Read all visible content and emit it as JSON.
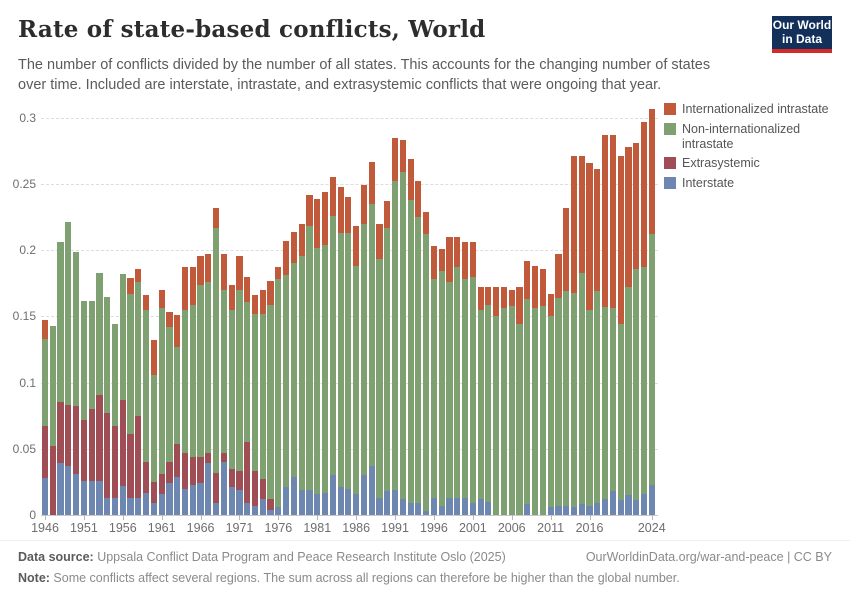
{
  "header": {
    "title": "Rate of state-based conflicts, World",
    "subtitle": "The number of conflicts divided by the number of all states. This accounts for the changing number of states over time. Included are interstate, intrastate, and extrasystemic conflicts that were ongoing that year."
  },
  "logo": {
    "line1": "Our World",
    "line2": "in Data",
    "bg_color": "#12305a",
    "stripe_color": "#d42b27"
  },
  "legend": [
    {
      "label": "Internationalized intrastate",
      "color": "#c05a3b"
    },
    {
      "label": "Non-internationalized intrastate",
      "color": "#7fa071"
    },
    {
      "label": "Extrasystemic",
      "color": "#9e4e54"
    },
    {
      "label": "Interstate",
      "color": "#6e87b1"
    }
  ],
  "chart_data": {
    "type": "bar",
    "stacked": true,
    "title": "Rate of state-based conflicts, World",
    "xlabel": "",
    "ylabel": "",
    "ylim": [
      0,
      0.31
    ],
    "grid": "horizontal-dashed",
    "legend_position": "top-right",
    "yticks": [
      {
        "value": 0,
        "label": "0"
      },
      {
        "value": 0.05,
        "label": "0.05"
      },
      {
        "value": 0.1,
        "label": "0.1"
      },
      {
        "value": 0.15,
        "label": "0.15"
      },
      {
        "value": 0.2,
        "label": "0.2"
      },
      {
        "value": 0.25,
        "label": "0.25"
      },
      {
        "value": 0.3,
        "label": "0.3"
      }
    ],
    "xtick_years": [
      1946,
      1951,
      1956,
      1961,
      1966,
      1971,
      1976,
      1981,
      1986,
      1991,
      1996,
      2001,
      2006,
      2011,
      2016,
      2024
    ],
    "years": [
      1946,
      1947,
      1948,
      1949,
      1950,
      1951,
      1952,
      1953,
      1954,
      1955,
      1956,
      1957,
      1958,
      1959,
      1960,
      1961,
      1962,
      1963,
      1964,
      1965,
      1966,
      1967,
      1968,
      1969,
      1970,
      1971,
      1972,
      1973,
      1974,
      1975,
      1976,
      1977,
      1978,
      1979,
      1980,
      1981,
      1982,
      1983,
      1984,
      1985,
      1986,
      1987,
      1988,
      1989,
      1990,
      1991,
      1992,
      1993,
      1994,
      1995,
      1996,
      1997,
      1998,
      1999,
      2000,
      2001,
      2002,
      2003,
      2004,
      2005,
      2006,
      2007,
      2008,
      2009,
      2010,
      2011,
      2012,
      2013,
      2014,
      2015,
      2016,
      2017,
      2018,
      2019,
      2020,
      2021,
      2022,
      2023,
      2024
    ],
    "series": [
      {
        "name": "Interstate",
        "color": "#6e87b1",
        "values": [
          0.028,
          0,
          0.039,
          0.037,
          0.031,
          0.026,
          0.026,
          0.026,
          0.013,
          0.013,
          0.022,
          0.013,
          0.013,
          0.017,
          0.009,
          0.016,
          0.024,
          0.029,
          0.02,
          0.023,
          0.024,
          0.039,
          0.009,
          0.04,
          0.021,
          0.019,
          0.009,
          0.007,
          0.012,
          0.004,
          0.006,
          0.021,
          0.029,
          0.019,
          0.019,
          0.016,
          0.017,
          0.03,
          0.021,
          0.02,
          0.016,
          0.03,
          0.037,
          0.013,
          0.018,
          0.019,
          0.012,
          0.009,
          0.009,
          0.003,
          0.013,
          0.007,
          0.013,
          0.013,
          0.013,
          0.009,
          0.012,
          0.01,
          0,
          0,
          0,
          0,
          0.008,
          0,
          0,
          0.006,
          0.007,
          0.007,
          0.006,
          0.008,
          0.007,
          0.009,
          0.012,
          0.018,
          0.011,
          0.015,
          0.011,
          0.016,
          0.023
        ]
      },
      {
        "name": "Extrasystemic",
        "color": "#9e4e54",
        "values": [
          0.039,
          0.052,
          0.046,
          0.046,
          0.051,
          0.046,
          0.054,
          0.065,
          0.064,
          0.054,
          0.065,
          0.048,
          0.062,
          0.023,
          0.016,
          0.015,
          0.016,
          0.025,
          0.027,
          0.021,
          0.02,
          0.008,
          0.023,
          0.007,
          0.014,
          0.014,
          0.046,
          0.026,
          0.015,
          0.008,
          0,
          0,
          0,
          0,
          0,
          0,
          0,
          0,
          0,
          0,
          0,
          0,
          0,
          0,
          0,
          0,
          0,
          0,
          0,
          0,
          0,
          0,
          0,
          0,
          0,
          0,
          0,
          0,
          0,
          0,
          0,
          0,
          0,
          0,
          0,
          0,
          0,
          0,
          0,
          0,
          0,
          0,
          0,
          0,
          0,
          0,
          0,
          0,
          0
        ]
      },
      {
        "name": "Non-internationalized intrastate",
        "color": "#7fa071",
        "values": [
          0.066,
          0.091,
          0.121,
          0.138,
          0.117,
          0.09,
          0.082,
          0.092,
          0.088,
          0.077,
          0.095,
          0.106,
          0.101,
          0.115,
          0.081,
          0.125,
          0.102,
          0.073,
          0.108,
          0.115,
          0.13,
          0.129,
          0.185,
          0.123,
          0.12,
          0.137,
          0.106,
          0.119,
          0.125,
          0.147,
          0.172,
          0.16,
          0.161,
          0.177,
          0.199,
          0.186,
          0.187,
          0.196,
          0.192,
          0.193,
          0.172,
          0.19,
          0.198,
          0.18,
          0.199,
          0.233,
          0.247,
          0.229,
          0.216,
          0.209,
          0.165,
          0.177,
          0.163,
          0.174,
          0.165,
          0.171,
          0.143,
          0.149,
          0.15,
          0.156,
          0.158,
          0.144,
          0.155,
          0.156,
          0.158,
          0.144,
          0.157,
          0.162,
          0.162,
          0.175,
          0.148,
          0.16,
          0.145,
          0.138,
          0.133,
          0.157,
          0.175,
          0.171,
          0.189
        ]
      },
      {
        "name": "Internationalized intrastate",
        "color": "#c05a3b",
        "values": [
          0.014,
          0,
          0,
          0,
          0,
          0,
          0,
          0,
          0,
          0,
          0,
          0.012,
          0.01,
          0.011,
          0.026,
          0.014,
          0.011,
          0.024,
          0.032,
          0.028,
          0.022,
          0.021,
          0.015,
          0.027,
          0.019,
          0.026,
          0.019,
          0.014,
          0.018,
          0.018,
          0.009,
          0.026,
          0.024,
          0.024,
          0.024,
          0.037,
          0.04,
          0.029,
          0.035,
          0.027,
          0.03,
          0.029,
          0.032,
          0.027,
          0.02,
          0.033,
          0.024,
          0.031,
          0.027,
          0.017,
          0.025,
          0.017,
          0.034,
          0.023,
          0.028,
          0.026,
          0.017,
          0.013,
          0.022,
          0.016,
          0.012,
          0.028,
          0.029,
          0.032,
          0.028,
          0.017,
          0.033,
          0.063,
          0.103,
          0.088,
          0.111,
          0.092,
          0.13,
          0.131,
          0.127,
          0.106,
          0.095,
          0.11,
          0.095
        ]
      }
    ]
  },
  "footer": {
    "data_source_label": "Data source:",
    "data_source_text": " Uppsala Conflict Data Program and Peace Research Institute Oslo (2025)",
    "link": "OurWorldinData.org/war-and-peace | CC BY",
    "note_label": "Note:",
    "note_text": " Some conflicts affect several regions. The sum across all regions can therefore be higher than the global number."
  }
}
